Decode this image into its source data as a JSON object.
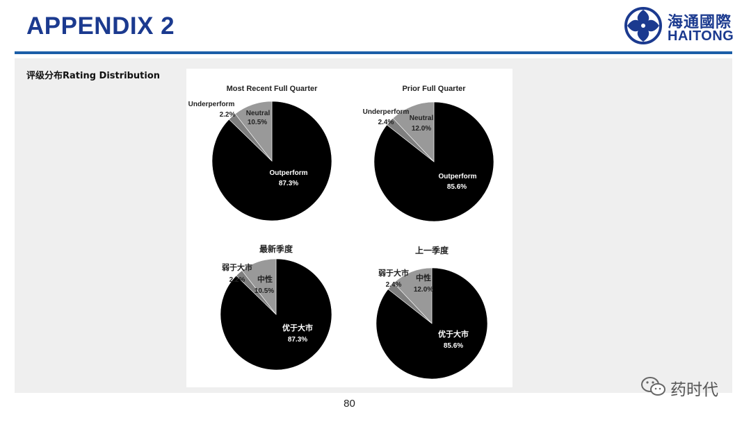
{
  "header": {
    "title": "APPENDIX 2",
    "logo_cn": "海通國際",
    "logo_en": "HAITONG"
  },
  "section_label": "评级分布Rating Distribution",
  "page_number": "80",
  "watermark_text": "药时代",
  "colors": {
    "title_blue": "#1b3a8f",
    "rule_blue": "#1b5ea8",
    "outperform": "#000000",
    "neutral": "#999999",
    "underperform": "#7f7f7f",
    "panel": "#efefef"
  },
  "chart_data": [
    {
      "type": "pie",
      "title": "Most Recent Full Quarter",
      "slices": [
        {
          "label": "Outperform",
          "value": 87.3,
          "display": "87.3%"
        },
        {
          "label": "Underperform",
          "value": 2.2,
          "display": "2.2%"
        },
        {
          "label": "Neutral",
          "value": 10.5,
          "display": "10.5%"
        }
      ]
    },
    {
      "type": "pie",
      "title": "Prior Full Quarter",
      "slices": [
        {
          "label": "Outperform",
          "value": 85.6,
          "display": "85.6%"
        },
        {
          "label": "Underperform",
          "value": 2.4,
          "display": "2.4%"
        },
        {
          "label": "Neutral",
          "value": 12.0,
          "display": "12.0%"
        }
      ]
    },
    {
      "type": "pie",
      "title": "最新季度",
      "slices": [
        {
          "label": "优于大市",
          "value": 87.3,
          "display": "87.3%"
        },
        {
          "label": "弱于大市",
          "value": 2.2,
          "display": "2.2%"
        },
        {
          "label": "中性",
          "value": 10.5,
          "display": "10.5%"
        }
      ]
    },
    {
      "type": "pie",
      "title": "上一季度",
      "slices": [
        {
          "label": "优于大市",
          "value": 85.6,
          "display": "85.6%"
        },
        {
          "label": "弱于大市",
          "value": 2.4,
          "display": "2.4%"
        },
        {
          "label": "中性",
          "value": 12.0,
          "display": "12.0%"
        }
      ]
    }
  ]
}
